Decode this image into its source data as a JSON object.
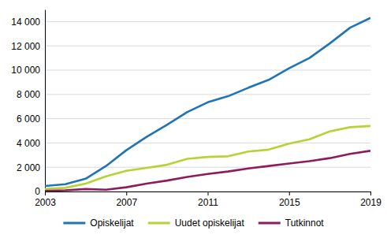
{
  "chart_data": {
    "type": "line",
    "x": [
      2003,
      2004,
      2005,
      2006,
      2007,
      2008,
      2009,
      2010,
      2011,
      2012,
      2013,
      2014,
      2015,
      2016,
      2017,
      2018,
      2019
    ],
    "xlim": [
      2003,
      2019
    ],
    "xticks": [
      2003,
      2007,
      2011,
      2015,
      2019
    ],
    "ylim": [
      0,
      15000
    ],
    "yticks": [
      0,
      {
        "value": 2000,
        "label": "2 000"
      },
      {
        "value": 4000,
        "label": "4 000"
      },
      {
        "value": 6000,
        "label": "6 000"
      },
      {
        "value": 8000,
        "label": "8 000"
      },
      {
        "value": 10000,
        "label": "10 000"
      },
      {
        "value": 12000,
        "label": "12 000"
      },
      {
        "value": 14000,
        "label": "14 000"
      }
    ],
    "grid": true,
    "legend": "bottom",
    "series": [
      {
        "name": "Opiskelijat",
        "color": "#1f74b8",
        "values": [
          450,
          600,
          1050,
          2100,
          3400,
          4500,
          5500,
          6550,
          7350,
          7850,
          8550,
          9200,
          10150,
          11000,
          12200,
          13500,
          14300
        ]
      },
      {
        "name": "Uudet opiskelijat",
        "color": "#b5d334",
        "values": [
          200,
          300,
          650,
          1250,
          1700,
          1950,
          2200,
          2700,
          2850,
          2900,
          3300,
          3450,
          3950,
          4300,
          4950,
          5300,
          5400
        ]
      },
      {
        "name": "Tutkinnot",
        "color": "#8e1b5e",
        "values": [
          50,
          100,
          200,
          150,
          350,
          650,
          900,
          1200,
          1450,
          1650,
          1900,
          2100,
          2300,
          2500,
          2750,
          3100,
          3350
        ]
      }
    ]
  }
}
